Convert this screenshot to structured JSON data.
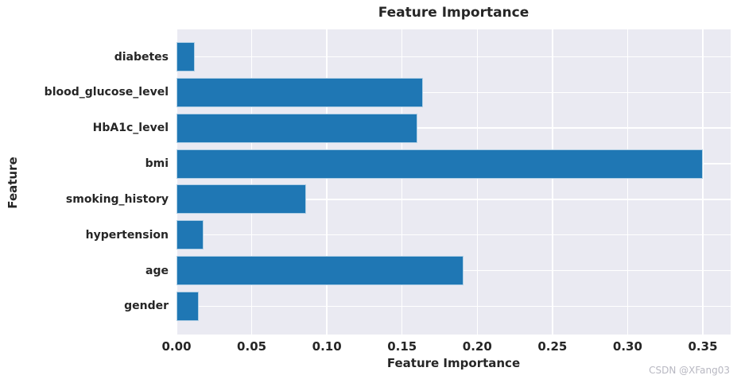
{
  "chart_data": {
    "type": "bar",
    "orientation": "horizontal",
    "title": "Feature Importance",
    "xlabel": "Feature Importance",
    "ylabel": "Feature",
    "categories": [
      "diabetes",
      "blood_glucose_level",
      "HbA1c_level",
      "bmi",
      "smoking_history",
      "hypertension",
      "age",
      "gender"
    ],
    "values": [
      0.012,
      0.164,
      0.16,
      0.35,
      0.086,
      0.018,
      0.191,
      0.015
    ],
    "xlim": [
      0,
      0.3685
    ],
    "xtick_labels": [
      "0.00",
      "0.05",
      "0.10",
      "0.15",
      "0.20",
      "0.25",
      "0.30",
      "0.35"
    ],
    "xtick_values": [
      0.0,
      0.05,
      0.1,
      0.15,
      0.2,
      0.25,
      0.3,
      0.35
    ],
    "grid": true,
    "legend": "none",
    "bar_color": "#1f77b4",
    "plot_bg_color": "#eaeaf2",
    "grid_color": "#ffffff",
    "text_color": "#262626"
  },
  "watermark": {
    "text": "CSDN @XFang03",
    "color": "#b8b8c2"
  }
}
